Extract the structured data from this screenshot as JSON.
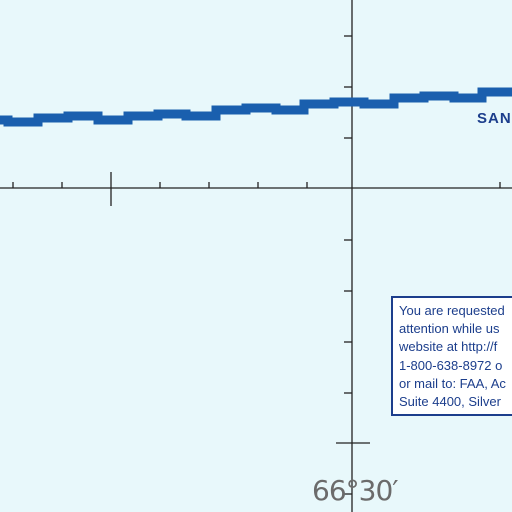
{
  "map": {
    "boundary_label": "SAN",
    "longitude_label": "66°30′",
    "notice_lines": [
      "You are requested",
      "attention while us",
      "website at http://f",
      "1-800-638-8972 o",
      "or mail to: FAA, Ac",
      "Suite 4400, Silver"
    ],
    "colors": {
      "background": "#e8f8fb",
      "boundary_band": "#1a5fae",
      "grid_lines": "#222222",
      "text_blue": "#1c3e8c",
      "longitude_label": "#6b6b6b"
    }
  }
}
